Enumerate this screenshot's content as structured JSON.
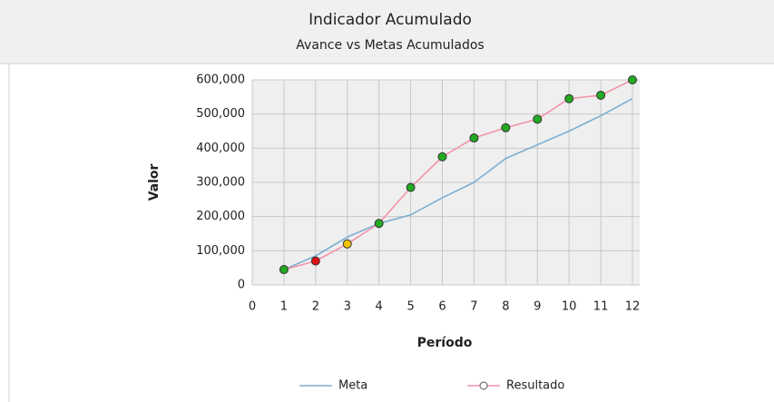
{
  "chart_data": {
    "type": "line",
    "title": "Indicador Acumulado",
    "subtitle": "Avance vs Metas Acumulados",
    "x_label": "Período",
    "y_label": "Valor",
    "x": [
      1,
      2,
      3,
      4,
      5,
      6,
      7,
      8,
      9,
      10,
      11,
      12
    ],
    "series": [
      {
        "name": "Meta",
        "color": "#7aaed2",
        "markers": false,
        "values": [
          45000,
          85000,
          140000,
          180000,
          205000,
          255000,
          300000,
          370000,
          410000,
          450000,
          495000,
          545000
        ]
      },
      {
        "name": "Resultado",
        "color": "#f293a8",
        "markers": true,
        "point_colors": [
          "#22aa22",
          "#dd1111",
          "#f2c200",
          "#22aa22",
          "#22aa22",
          "#22aa22",
          "#22aa22",
          "#22aa22",
          "#22aa22",
          "#22aa22",
          "#22aa22",
          "#22aa22"
        ],
        "values": [
          45000,
          70000,
          120000,
          180000,
          285000,
          375000,
          430000,
          460000,
          485000,
          545000,
          555000,
          600000
        ]
      }
    ],
    "xlim": [
      0,
      12
    ],
    "xticks": [
      0,
      1,
      2,
      3,
      4,
      5,
      6,
      7,
      8,
      9,
      10,
      11,
      12
    ],
    "ylim": [
      0,
      600000
    ],
    "yticks": [
      0,
      {
        "value": 100000,
        "label": "100,000"
      },
      {
        "value": 200000,
        "label": "200,000"
      },
      {
        "value": 300000,
        "label": "300,000"
      },
      {
        "value": 400000,
        "label": "400,000"
      },
      {
        "value": 500000,
        "label": "500,000"
      },
      {
        "value": 600000,
        "label": "600,000"
      }
    ],
    "grid": true,
    "legend": "bottom"
  }
}
